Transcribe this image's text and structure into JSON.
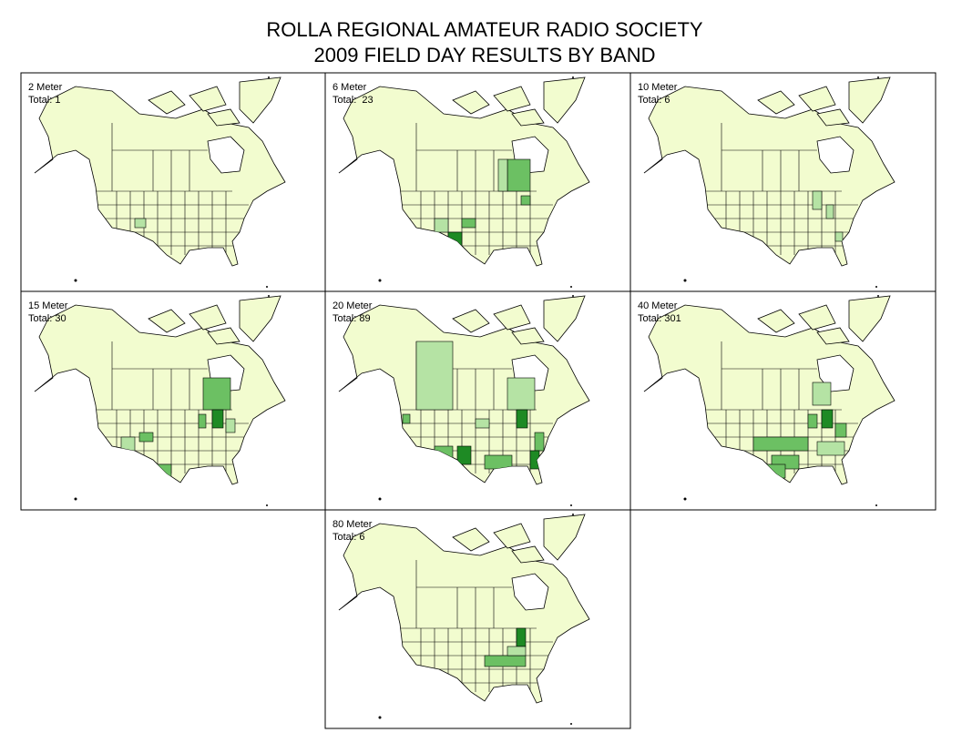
{
  "header": {
    "title": [
      "ROLLA REGIONAL AMATEUR RADIO SOCIETY",
      "2009 FIELD DAY RESULTS BY BAND"
    ]
  },
  "panels": [
    {
      "band": "2 Meter",
      "total": "Total: 1"
    },
    {
      "band": "6 Meter",
      "total": "Total:  23"
    },
    {
      "band": "10 Meter",
      "total": "Total: 6"
    },
    {
      "band": "15 Meter",
      "total": "Total: 30"
    },
    {
      "band": "20 Meter",
      "total": "Total: 89"
    },
    {
      "band": "40 Meter",
      "total": "Total: 301"
    },
    {
      "band": "80 Meter",
      "total": "Total: 6"
    }
  ]
}
